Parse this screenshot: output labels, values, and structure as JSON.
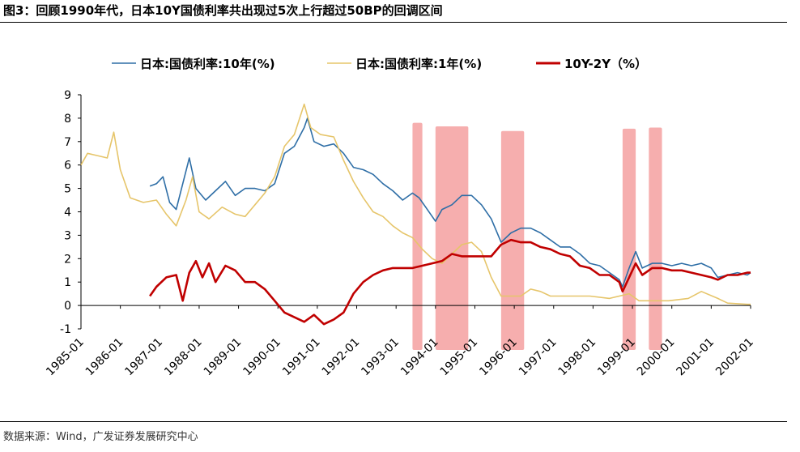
{
  "header": {
    "title": "图3：回顾1990年代，日本10Y国债利率共出现过5次上行超过50BP的回调区间"
  },
  "footer": {
    "source": "数据来源：Wind，广发证券发展研究中心"
  },
  "colors": {
    "y10": "#2e6ea6",
    "y1": "#e6c56a",
    "spread": "#c00000",
    "band": "#f4a0a0"
  },
  "chart_data": {
    "type": "line",
    "title": "",
    "xlabel": "",
    "ylabel": "",
    "ylim": [
      -1,
      9
    ],
    "yticks": [
      "-1",
      "0",
      "1",
      "2",
      "3",
      "4",
      "5",
      "6",
      "7",
      "8",
      "9"
    ],
    "xticks": [
      "1985-01",
      "1986-01",
      "1987-01",
      "1988-01",
      "1989-01",
      "1990-01",
      "1991-01",
      "1992-01",
      "1993-01",
      "1994-01",
      "1995-01",
      "1996-01",
      "1997-01",
      "1998-01",
      "1999-01",
      "2000-01",
      "2001-01",
      "2002-01"
    ],
    "legend": "top",
    "grid": false,
    "highlight_bands": [
      {
        "start": "1993-06",
        "end": "1993-09"
      },
      {
        "start": "1994-01",
        "end": "1994-11"
      },
      {
        "start": "1995-09",
        "end": "1996-04"
      },
      {
        "start": "1998-10",
        "end": "1999-02"
      },
      {
        "start": "1999-06",
        "end": "1999-10"
      }
    ],
    "series": [
      {
        "name": "日本:国债利率:10年(%)",
        "color": "#2e6ea6",
        "points": [
          [
            "1986-10",
            5.1
          ],
          [
            "1986-12",
            5.2
          ],
          [
            "1987-02",
            5.5
          ],
          [
            "1987-04",
            4.4
          ],
          [
            "1987-06",
            4.1
          ],
          [
            "1987-08",
            5.2
          ],
          [
            "1987-10",
            6.3
          ],
          [
            "1987-12",
            5.0
          ],
          [
            "1988-03",
            4.5
          ],
          [
            "1988-06",
            4.9
          ],
          [
            "1988-09",
            5.3
          ],
          [
            "1988-12",
            4.7
          ],
          [
            "1989-03",
            5.0
          ],
          [
            "1989-06",
            5.0
          ],
          [
            "1989-09",
            4.9
          ],
          [
            "1989-12",
            5.2
          ],
          [
            "1990-03",
            6.5
          ],
          [
            "1990-06",
            6.8
          ],
          [
            "1990-09",
            7.6
          ],
          [
            "1990-10",
            8.0
          ],
          [
            "1990-12",
            7.0
          ],
          [
            "1991-03",
            6.8
          ],
          [
            "1991-06",
            6.9
          ],
          [
            "1991-09",
            6.5
          ],
          [
            "1991-12",
            5.9
          ],
          [
            "1992-03",
            5.8
          ],
          [
            "1992-06",
            5.6
          ],
          [
            "1992-09",
            5.2
          ],
          [
            "1992-12",
            4.9
          ],
          [
            "1993-03",
            4.5
          ],
          [
            "1993-06",
            4.8
          ],
          [
            "1993-08",
            4.6
          ],
          [
            "1993-10",
            4.2
          ],
          [
            "1994-01",
            3.6
          ],
          [
            "1994-03",
            4.1
          ],
          [
            "1994-06",
            4.3
          ],
          [
            "1994-09",
            4.7
          ],
          [
            "1994-12",
            4.7
          ],
          [
            "1995-03",
            4.3
          ],
          [
            "1995-06",
            3.7
          ],
          [
            "1995-09",
            2.7
          ],
          [
            "1995-12",
            3.1
          ],
          [
            "1996-03",
            3.3
          ],
          [
            "1996-06",
            3.3
          ],
          [
            "1996-09",
            3.1
          ],
          [
            "1996-12",
            2.8
          ],
          [
            "1997-03",
            2.5
          ],
          [
            "1997-06",
            2.5
          ],
          [
            "1997-09",
            2.2
          ],
          [
            "1997-12",
            1.8
          ],
          [
            "1998-03",
            1.7
          ],
          [
            "1998-06",
            1.4
          ],
          [
            "1998-09",
            1.1
          ],
          [
            "1998-10",
            0.8
          ],
          [
            "1998-12",
            1.6
          ],
          [
            "1999-02",
            2.3
          ],
          [
            "1999-04",
            1.6
          ],
          [
            "1999-07",
            1.8
          ],
          [
            "1999-10",
            1.8
          ],
          [
            "2000-01",
            1.7
          ],
          [
            "2000-04",
            1.8
          ],
          [
            "2000-07",
            1.7
          ],
          [
            "2000-10",
            1.8
          ],
          [
            "2001-01",
            1.6
          ],
          [
            "2001-03",
            1.2
          ],
          [
            "2001-06",
            1.3
          ],
          [
            "2001-09",
            1.4
          ],
          [
            "2001-12",
            1.3
          ],
          [
            "2002-01",
            1.4
          ]
        ]
      },
      {
        "name": "日本:国债利率:1年(%)",
        "color": "#e6c56a",
        "points": [
          [
            "1985-01",
            6.0
          ],
          [
            "1985-03",
            6.5
          ],
          [
            "1985-06",
            6.4
          ],
          [
            "1985-09",
            6.3
          ],
          [
            "1985-11",
            7.4
          ],
          [
            "1986-01",
            5.8
          ],
          [
            "1986-04",
            4.6
          ],
          [
            "1986-08",
            4.4
          ],
          [
            "1986-12",
            4.5
          ],
          [
            "1987-03",
            3.9
          ],
          [
            "1987-06",
            3.4
          ],
          [
            "1987-09",
            4.5
          ],
          [
            "1987-11",
            5.5
          ],
          [
            "1988-01",
            4.0
          ],
          [
            "1988-04",
            3.7
          ],
          [
            "1988-08",
            4.2
          ],
          [
            "1988-12",
            3.9
          ],
          [
            "1989-03",
            3.8
          ],
          [
            "1989-06",
            4.3
          ],
          [
            "1989-09",
            4.8
          ],
          [
            "1989-12",
            5.5
          ],
          [
            "1990-03",
            6.8
          ],
          [
            "1990-06",
            7.3
          ],
          [
            "1990-09",
            8.6
          ],
          [
            "1990-11",
            7.6
          ],
          [
            "1991-02",
            7.3
          ],
          [
            "1991-06",
            7.2
          ],
          [
            "1991-09",
            6.2
          ],
          [
            "1991-12",
            5.3
          ],
          [
            "1992-03",
            4.6
          ],
          [
            "1992-06",
            4.0
          ],
          [
            "1992-09",
            3.8
          ],
          [
            "1992-12",
            3.4
          ],
          [
            "1993-03",
            3.1
          ],
          [
            "1993-06",
            2.9
          ],
          [
            "1993-09",
            2.4
          ],
          [
            "1993-12",
            2.0
          ],
          [
            "1994-03",
            1.8
          ],
          [
            "1994-06",
            2.2
          ],
          [
            "1994-09",
            2.6
          ],
          [
            "1994-12",
            2.7
          ],
          [
            "1995-03",
            2.3
          ],
          [
            "1995-06",
            1.2
          ],
          [
            "1995-09",
            0.4
          ],
          [
            "1995-12",
            0.4
          ],
          [
            "1996-03",
            0.4
          ],
          [
            "1996-06",
            0.7
          ],
          [
            "1996-09",
            0.6
          ],
          [
            "1996-12",
            0.4
          ],
          [
            "1997-06",
            0.4
          ],
          [
            "1997-12",
            0.4
          ],
          [
            "1998-06",
            0.3
          ],
          [
            "1998-12",
            0.5
          ],
          [
            "1999-03",
            0.2
          ],
          [
            "1999-06",
            0.2
          ],
          [
            "1999-12",
            0.2
          ],
          [
            "2000-06",
            0.3
          ],
          [
            "2000-10",
            0.6
          ],
          [
            "2001-03",
            0.3
          ],
          [
            "2001-06",
            0.1
          ],
          [
            "2001-12",
            0.05
          ],
          [
            "2002-01",
            0.05
          ]
        ]
      },
      {
        "name": "10Y-2Y（%）",
        "color": "#c00000",
        "points": [
          [
            "1986-10",
            0.4
          ],
          [
            "1986-12",
            0.8
          ],
          [
            "1987-03",
            1.2
          ],
          [
            "1987-06",
            1.3
          ],
          [
            "1987-08",
            0.2
          ],
          [
            "1987-10",
            1.4
          ],
          [
            "1987-12",
            1.9
          ],
          [
            "1988-02",
            1.2
          ],
          [
            "1988-04",
            1.8
          ],
          [
            "1988-06",
            1.0
          ],
          [
            "1988-09",
            1.7
          ],
          [
            "1988-12",
            1.5
          ],
          [
            "1989-03",
            1.0
          ],
          [
            "1989-06",
            1.0
          ],
          [
            "1989-09",
            0.7
          ],
          [
            "1989-12",
            0.2
          ],
          [
            "1990-03",
            -0.3
          ],
          [
            "1990-06",
            -0.5
          ],
          [
            "1990-09",
            -0.7
          ],
          [
            "1990-12",
            -0.4
          ],
          [
            "1991-03",
            -0.8
          ],
          [
            "1991-06",
            -0.6
          ],
          [
            "1991-09",
            -0.3
          ],
          [
            "1991-12",
            0.5
          ],
          [
            "1992-03",
            1.0
          ],
          [
            "1992-06",
            1.3
          ],
          [
            "1992-09",
            1.5
          ],
          [
            "1992-12",
            1.6
          ],
          [
            "1993-03",
            1.6
          ],
          [
            "1993-06",
            1.6
          ],
          [
            "1993-09",
            1.7
          ],
          [
            "1993-12",
            1.8
          ],
          [
            "1994-03",
            1.9
          ],
          [
            "1994-06",
            2.2
          ],
          [
            "1994-09",
            2.1
          ],
          [
            "1994-12",
            2.1
          ],
          [
            "1995-03",
            2.1
          ],
          [
            "1995-06",
            2.1
          ],
          [
            "1995-09",
            2.6
          ],
          [
            "1995-12",
            2.8
          ],
          [
            "1996-03",
            2.7
          ],
          [
            "1996-06",
            2.7
          ],
          [
            "1996-09",
            2.5
          ],
          [
            "1996-12",
            2.4
          ],
          [
            "1997-03",
            2.2
          ],
          [
            "1997-06",
            2.1
          ],
          [
            "1997-09",
            1.7
          ],
          [
            "1997-12",
            1.6
          ],
          [
            "1998-03",
            1.3
          ],
          [
            "1998-06",
            1.3
          ],
          [
            "1998-09",
            1.0
          ],
          [
            "1998-10",
            0.6
          ],
          [
            "1998-12",
            1.2
          ],
          [
            "1999-02",
            1.8
          ],
          [
            "1999-04",
            1.3
          ],
          [
            "1999-07",
            1.6
          ],
          [
            "1999-10",
            1.6
          ],
          [
            "2000-01",
            1.5
          ],
          [
            "2000-04",
            1.5
          ],
          [
            "2000-07",
            1.4
          ],
          [
            "2000-10",
            1.3
          ],
          [
            "2001-01",
            1.2
          ],
          [
            "2001-03",
            1.1
          ],
          [
            "2001-06",
            1.3
          ],
          [
            "2001-09",
            1.3
          ],
          [
            "2001-12",
            1.4
          ],
          [
            "2002-01",
            1.4
          ]
        ]
      }
    ]
  }
}
